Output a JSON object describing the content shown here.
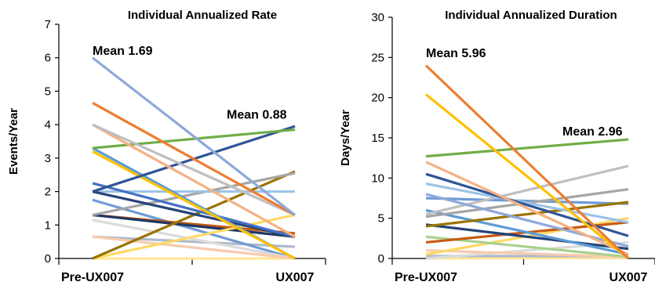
{
  "chart_data": [
    {
      "type": "line",
      "title": "Individual Annualized Rate",
      "ylabel": "Events/Year",
      "xlabel": "",
      "categories": [
        "Pre-UX007",
        "UX007"
      ],
      "ylim": [
        0,
        7
      ],
      "yticks": [
        0,
        1,
        2,
        3,
        4,
        5,
        6,
        7
      ],
      "annotations": [
        {
          "text": "Mean 1.69",
          "x": "Pre-UX007",
          "y": 6.2
        },
        {
          "text": "Mean 0.88",
          "x": "UX007",
          "y": 4.3
        }
      ],
      "series": [
        {
          "color": "#8EA9DB",
          "values": [
            6.0,
            1.3
          ]
        },
        {
          "color": "#ED7D31",
          "values": [
            4.65,
            1.3
          ]
        },
        {
          "color": "#BFBFBF",
          "values": [
            4.0,
            1.3
          ]
        },
        {
          "color": "#F4B183",
          "values": [
            4.0,
            0.65
          ]
        },
        {
          "color": "#70AD47",
          "values": [
            3.3,
            3.85
          ]
        },
        {
          "color": "#2F5597",
          "values": [
            2.0,
            3.95
          ]
        },
        {
          "color": "#FFC000",
          "values": [
            3.2,
            0.0
          ]
        },
        {
          "color": "#5B9BD5",
          "values": [
            3.3,
            0.0
          ]
        },
        {
          "color": "#4472C4",
          "values": [
            2.25,
            0.65
          ]
        },
        {
          "color": "#264478",
          "values": [
            2.0,
            0.65
          ]
        },
        {
          "color": "#9DC3E6",
          "values": [
            2.0,
            2.0
          ]
        },
        {
          "color": "#A5A5A5",
          "values": [
            1.3,
            2.55
          ]
        },
        {
          "color": "#997300",
          "values": [
            0.0,
            2.6
          ]
        },
        {
          "color": "#FFD966",
          "values": [
            0.0,
            1.3
          ]
        },
        {
          "color": "#1F3864",
          "values": [
            1.3,
            0.65
          ]
        },
        {
          "color": "#C55A11",
          "values": [
            1.3,
            0.75
          ]
        },
        {
          "color": "#F8CBAD",
          "values": [
            0.65,
            0.0
          ]
        },
        {
          "color": "#DBDBDB",
          "values": [
            1.15,
            0.0
          ]
        },
        {
          "color": "#6F9BD5",
          "values": [
            1.75,
            0.0
          ]
        },
        {
          "color": "#ADB9CA",
          "values": [
            0.65,
            0.35
          ]
        },
        {
          "color": "#FFE699",
          "values": [
            0.0,
            0.0
          ]
        }
      ]
    },
    {
      "type": "line",
      "title": "Individual Annualized Duration",
      "ylabel": "Days/Year",
      "xlabel": "",
      "categories": [
        "Pre-UX007",
        "UX007"
      ],
      "ylim": [
        0,
        30
      ],
      "yticks": [
        0,
        5,
        10,
        15,
        20,
        25,
        30
      ],
      "annotations": [
        {
          "text": "Mean 5.96",
          "x": "Pre-UX007",
          "y": 25.5
        },
        {
          "text": "Mean 2.96",
          "x": "UX007",
          "y": 15.8
        }
      ],
      "series": [
        {
          "color": "#ED7D31",
          "values": [
            24.0,
            0.0
          ]
        },
        {
          "color": "#FFC000",
          "values": [
            20.4,
            0.0
          ]
        },
        {
          "color": "#70AD47",
          "values": [
            12.7,
            14.8
          ]
        },
        {
          "color": "#F4B183",
          "values": [
            12.0,
            0.5
          ]
        },
        {
          "color": "#2F5597",
          "values": [
            10.5,
            2.8
          ]
        },
        {
          "color": "#9DC3E6",
          "values": [
            9.3,
            4.5
          ]
        },
        {
          "color": "#8EA9DB",
          "values": [
            8.0,
            1.5
          ]
        },
        {
          "color": "#BFBFBF",
          "values": [
            5.5,
            11.5
          ]
        },
        {
          "color": "#A5A5A5",
          "values": [
            5.2,
            8.6
          ]
        },
        {
          "color": "#997300",
          "values": [
            4.0,
            7.0
          ]
        },
        {
          "color": "#5B9BD5",
          "values": [
            6.0,
            0.5
          ]
        },
        {
          "color": "#264478",
          "values": [
            4.2,
            1.2
          ]
        },
        {
          "color": "#C55A11",
          "values": [
            2.0,
            4.5
          ]
        },
        {
          "color": "#A9D18E",
          "values": [
            2.7,
            0.2
          ]
        },
        {
          "color": "#FFD966",
          "values": [
            0.5,
            5.0
          ]
        },
        {
          "color": "#6F9BD5",
          "values": [
            7.5,
            6.8
          ]
        },
        {
          "color": "#F8CBAD",
          "values": [
            1.0,
            0.2
          ]
        },
        {
          "color": "#DBDBDB",
          "values": [
            0.0,
            2.0
          ]
        },
        {
          "color": "#ADB9CA",
          "values": [
            0.3,
            0.3
          ]
        },
        {
          "color": "#FFE699",
          "values": [
            0.0,
            0.1
          ]
        }
      ]
    }
  ]
}
